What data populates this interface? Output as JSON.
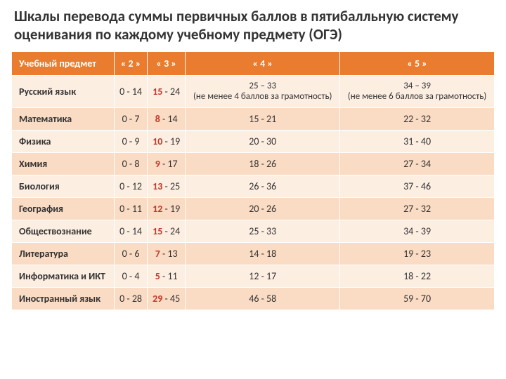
{
  "title": "Шкалы перевода суммы первичных баллов в пятибалльную систему оценивания по каждому учебному предмету (ОГЭ)",
  "colors": {
    "header_bg": "#e97c2e",
    "header_text": "#ffffff",
    "row_light": "#fdeee2",
    "row_dark": "#fadbc3",
    "accent": "#c0392b"
  },
  "table": {
    "headers": [
      "Учебный предмет",
      "« 2 »",
      "« 3 »",
      "« 4 »",
      "« 5 »"
    ],
    "rows": [
      {
        "subject": "Русский язык",
        "c2": "0 - 14",
        "c3_accent": "15",
        "c3_rest": " - 24",
        "c4_main": "25 – 33",
        "c4_sub": "(не менее 4 баллов за грамотность)",
        "c5_main": "34 – 39",
        "c5_sub": "(не менее 6 баллов за грамотность)"
      },
      {
        "subject": "Математика",
        "c2": "0 - 7",
        "c3_accent": "8",
        "c3_rest": " - 14",
        "c4": "15 - 21",
        "c5": "22 - 32"
      },
      {
        "subject": "Физика",
        "c2": "0 - 9",
        "c3_accent": "10",
        "c3_rest": " - 19",
        "c4": "20 - 30",
        "c5": "31 - 40"
      },
      {
        "subject": "Химия",
        "c2": "0 - 8",
        "c3_accent": "9",
        "c3_rest": " - 17",
        "c4": "18 - 26",
        "c5": "27 - 34"
      },
      {
        "subject": "Биология",
        "c2": "0 - 12",
        "c3_accent": "13",
        "c3_rest": " - 25",
        "c4": "26 - 36",
        "c5": "37 - 46"
      },
      {
        "subject": "География",
        "c2": "0 - 11",
        "c3_accent": "12",
        "c3_rest": " - 19",
        "c4": "20 - 26",
        "c5": "27 - 32"
      },
      {
        "subject": "Обществознание",
        "c2": "0 - 14",
        "c3_accent": "15",
        "c3_rest": " - 24",
        "c4": "25 - 33",
        "c5": "34 - 39"
      },
      {
        "subject": "Литература",
        "c2": "0 - 6",
        "c3_accent": "7",
        "c3_rest": " - 13",
        "c4": "14 - 18",
        "c5": "19 - 23"
      },
      {
        "subject": "Информатика и ИКТ",
        "c2": "0 - 4",
        "c3_accent": "5",
        "c3_rest": " - 11",
        "c4": "12 - 17",
        "c5": "18 - 22"
      },
      {
        "subject": "Иностранный язык",
        "c2": "0 - 28",
        "c3_accent": "29",
        "c3_rest": " - 45",
        "c4": "46 - 58",
        "c5": "59 - 70"
      }
    ]
  }
}
